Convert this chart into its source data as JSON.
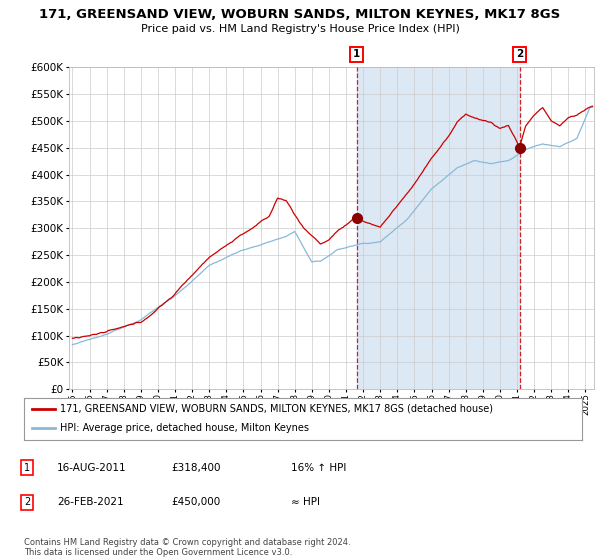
{
  "title": "171, GREENSAND VIEW, WOBURN SANDS, MILTON KEYNES, MK17 8GS",
  "subtitle": "Price paid vs. HM Land Registry's House Price Index (HPI)",
  "red_label": "171, GREENSAND VIEW, WOBURN SANDS, MILTON KEYNES, MK17 8GS (detached house)",
  "blue_label": "HPI: Average price, detached house, Milton Keynes",
  "annotation1_date": "16-AUG-2011",
  "annotation1_price": "£318,400",
  "annotation1_hpi": "16% ↑ HPI",
  "annotation2_date": "26-FEB-2021",
  "annotation2_price": "£450,000",
  "annotation2_hpi": "≈ HPI",
  "vline1_x": 2011.62,
  "vline2_x": 2021.15,
  "marker1_x": 2011.62,
  "marker1_y": 318400,
  "marker2_x": 2021.15,
  "marker2_y": 450000,
  "ylim": [
    0,
    600000
  ],
  "xlim": [
    1994.8,
    2025.5
  ],
  "background_color": "#ffffff",
  "plot_bg_color": "#ffffff",
  "shaded_region_color": "#dce9f5",
  "grid_color": "#cccccc",
  "red_color": "#cc0000",
  "blue_color": "#8ab8d8",
  "footer": "Contains HM Land Registry data © Crown copyright and database right 2024.\nThis data is licensed under the Open Government Licence v3.0."
}
